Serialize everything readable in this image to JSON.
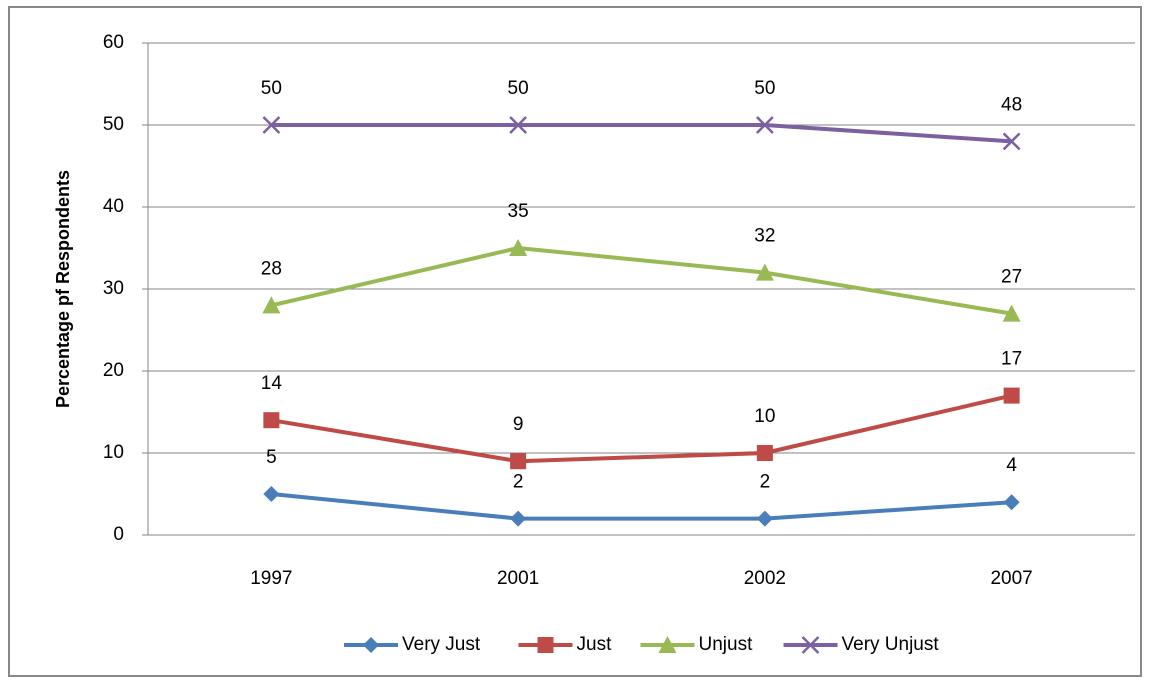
{
  "chart_data": {
    "type": "line",
    "y_label": "Percentage pf Respondents",
    "categories": [
      "1997",
      "2001",
      "2002",
      "2007"
    ],
    "series": [
      {
        "name": "Very Just",
        "color": "#4a7ebb",
        "marker": "diamond",
        "values": [
          5,
          2,
          2,
          4
        ]
      },
      {
        "name": "Just",
        "color": "#be4b48",
        "marker": "square",
        "values": [
          14,
          9,
          10,
          17
        ]
      },
      {
        "name": "Unjust",
        "color": "#98b954",
        "marker": "triangle",
        "values": [
          28,
          35,
          32,
          27
        ]
      },
      {
        "name": "Very Unjust",
        "color": "#7d60a0",
        "marker": "x",
        "values": [
          50,
          50,
          50,
          48
        ]
      }
    ],
    "ylim": [
      0,
      60
    ],
    "yticks": [
      0,
      10,
      20,
      30,
      40,
      50,
      60
    ],
    "grid": true,
    "legend": "bottom"
  }
}
